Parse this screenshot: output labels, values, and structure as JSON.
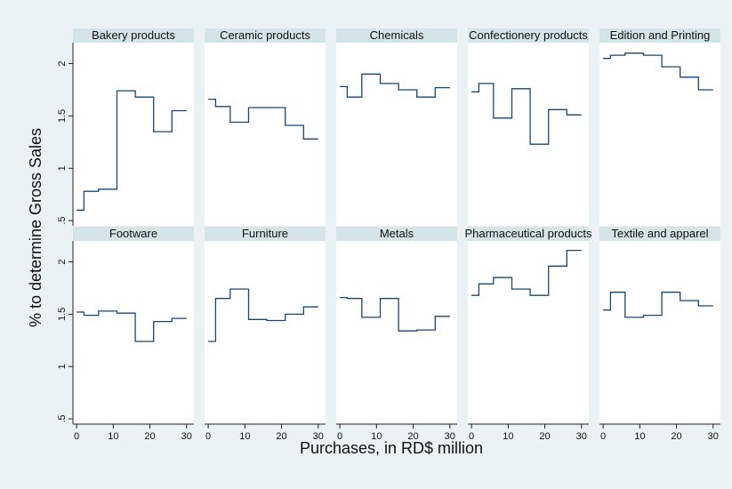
{
  "chart_data": {
    "type": "line",
    "xlabel": "Purchases, in RD$ million",
    "ylabel": "% to determine Gross Sales",
    "xlim": [
      -1,
      32
    ],
    "ylim": [
      0.45,
      2.2
    ],
    "xticks": [
      0,
      10,
      20,
      30
    ],
    "yticks": [
      0.5,
      1,
      1.5,
      2
    ],
    "xtick_labels": [
      "0",
      "10",
      "20",
      "30"
    ],
    "ytick_labels": [
      ".5",
      "1",
      "1.5",
      "2"
    ],
    "grid": false,
    "layout": {
      "rows": 2,
      "cols": 5
    },
    "line_color": "#1a476f",
    "panel_background": "#ffffff",
    "strip_color": "#d5e4e7",
    "page_background": "#eaf2f3",
    "panels": [
      {
        "name": "Bakery products",
        "x": [
          0,
          1,
          2,
          3,
          4,
          5,
          6,
          7,
          8,
          9,
          10,
          11,
          12,
          13,
          14,
          15,
          16,
          17,
          18,
          19,
          20,
          21,
          22,
          23,
          24,
          25,
          26,
          27,
          28,
          29,
          30
        ],
        "y": [
          0.6,
          0.6,
          0.78,
          0.78,
          0.78,
          0.78,
          0.8,
          0.8,
          0.8,
          0.8,
          0.8,
          1.74,
          1.74,
          1.74,
          1.74,
          1.74,
          1.68,
          1.68,
          1.68,
          1.68,
          1.68,
          1.35,
          1.35,
          1.35,
          1.35,
          1.35,
          1.55,
          1.55,
          1.55,
          1.55,
          1.55
        ]
      },
      {
        "name": "Ceramic products",
        "x": [
          0,
          1,
          2,
          3,
          4,
          5,
          6,
          7,
          8,
          9,
          10,
          11,
          12,
          13,
          14,
          15,
          16,
          17,
          18,
          19,
          20,
          21,
          22,
          23,
          24,
          25,
          26,
          27,
          28,
          29,
          30
        ],
        "y": [
          1.66,
          1.66,
          1.59,
          1.59,
          1.59,
          1.59,
          1.44,
          1.44,
          1.44,
          1.44,
          1.44,
          1.58,
          1.58,
          1.58,
          1.58,
          1.58,
          1.58,
          1.58,
          1.58,
          1.58,
          1.58,
          1.41,
          1.41,
          1.41,
          1.41,
          1.41,
          1.28,
          1.28,
          1.28,
          1.28,
          1.28
        ]
      },
      {
        "name": "Chemicals",
        "x": [
          0,
          1,
          2,
          3,
          4,
          5,
          6,
          7,
          8,
          9,
          10,
          11,
          12,
          13,
          14,
          15,
          16,
          17,
          18,
          19,
          20,
          21,
          22,
          23,
          24,
          25,
          26,
          27,
          28,
          29,
          30
        ],
        "y": [
          1.78,
          1.78,
          1.68,
          1.68,
          1.68,
          1.68,
          1.9,
          1.9,
          1.9,
          1.9,
          1.9,
          1.81,
          1.81,
          1.81,
          1.81,
          1.81,
          1.75,
          1.75,
          1.75,
          1.75,
          1.75,
          1.68,
          1.68,
          1.68,
          1.68,
          1.68,
          1.77,
          1.77,
          1.77,
          1.77,
          1.77
        ]
      },
      {
        "name": "Confectionery products",
        "x": [
          0,
          1,
          2,
          3,
          4,
          5,
          6,
          7,
          8,
          9,
          10,
          11,
          12,
          13,
          14,
          15,
          16,
          17,
          18,
          19,
          20,
          21,
          22,
          23,
          24,
          25,
          26,
          27,
          28,
          29,
          30
        ],
        "y": [
          1.73,
          1.73,
          1.81,
          1.81,
          1.81,
          1.81,
          1.48,
          1.48,
          1.48,
          1.48,
          1.48,
          1.76,
          1.76,
          1.76,
          1.76,
          1.76,
          1.23,
          1.23,
          1.23,
          1.23,
          1.23,
          1.56,
          1.56,
          1.56,
          1.56,
          1.56,
          1.51,
          1.51,
          1.51,
          1.51,
          1.51
        ]
      },
      {
        "name": "Edition and Printing",
        "x": [
          0,
          1,
          2,
          3,
          4,
          5,
          6,
          7,
          8,
          9,
          10,
          11,
          12,
          13,
          14,
          15,
          16,
          17,
          18,
          19,
          20,
          21,
          22,
          23,
          24,
          25,
          26,
          27,
          28,
          29,
          30
        ],
        "y": [
          2.05,
          2.05,
          2.08,
          2.08,
          2.08,
          2.08,
          2.1,
          2.1,
          2.1,
          2.1,
          2.1,
          2.08,
          2.08,
          2.08,
          2.08,
          2.08,
          1.97,
          1.97,
          1.97,
          1.97,
          1.97,
          1.87,
          1.87,
          1.87,
          1.87,
          1.87,
          1.75,
          1.75,
          1.75,
          1.75,
          1.75
        ]
      },
      {
        "name": "Footware",
        "x": [
          0,
          1,
          2,
          3,
          4,
          5,
          6,
          7,
          8,
          9,
          10,
          11,
          12,
          13,
          14,
          15,
          16,
          17,
          18,
          19,
          20,
          21,
          22,
          23,
          24,
          25,
          26,
          27,
          28,
          29,
          30
        ],
        "y": [
          1.52,
          1.52,
          1.49,
          1.49,
          1.49,
          1.49,
          1.53,
          1.53,
          1.53,
          1.53,
          1.53,
          1.51,
          1.51,
          1.51,
          1.51,
          1.51,
          1.24,
          1.24,
          1.24,
          1.24,
          1.24,
          1.43,
          1.43,
          1.43,
          1.43,
          1.43,
          1.46,
          1.46,
          1.46,
          1.46,
          1.46
        ]
      },
      {
        "name": "Furniture",
        "x": [
          0,
          1,
          2,
          3,
          4,
          5,
          6,
          7,
          8,
          9,
          10,
          11,
          12,
          13,
          14,
          15,
          16,
          17,
          18,
          19,
          20,
          21,
          22,
          23,
          24,
          25,
          26,
          27,
          28,
          29,
          30
        ],
        "y": [
          1.24,
          1.24,
          1.65,
          1.65,
          1.65,
          1.65,
          1.74,
          1.74,
          1.74,
          1.74,
          1.74,
          1.45,
          1.45,
          1.45,
          1.45,
          1.45,
          1.44,
          1.44,
          1.44,
          1.44,
          1.44,
          1.5,
          1.5,
          1.5,
          1.5,
          1.5,
          1.57,
          1.57,
          1.57,
          1.57,
          1.57
        ]
      },
      {
        "name": "Metals",
        "x": [
          0,
          1,
          2,
          3,
          4,
          5,
          6,
          7,
          8,
          9,
          10,
          11,
          12,
          13,
          14,
          15,
          16,
          17,
          18,
          19,
          20,
          21,
          22,
          23,
          24,
          25,
          26,
          27,
          28,
          29,
          30
        ],
        "y": [
          1.66,
          1.66,
          1.65,
          1.65,
          1.65,
          1.65,
          1.47,
          1.47,
          1.47,
          1.47,
          1.47,
          1.65,
          1.65,
          1.65,
          1.65,
          1.65,
          1.34,
          1.34,
          1.34,
          1.34,
          1.34,
          1.35,
          1.35,
          1.35,
          1.35,
          1.35,
          1.48,
          1.48,
          1.48,
          1.48,
          1.48
        ]
      },
      {
        "name": "Pharmaceutical products",
        "x": [
          0,
          1,
          2,
          3,
          4,
          5,
          6,
          7,
          8,
          9,
          10,
          11,
          12,
          13,
          14,
          15,
          16,
          17,
          18,
          19,
          20,
          21,
          22,
          23,
          24,
          25,
          26,
          27,
          28,
          29,
          30
        ],
        "y": [
          1.68,
          1.68,
          1.79,
          1.79,
          1.79,
          1.79,
          1.85,
          1.85,
          1.85,
          1.85,
          1.85,
          1.74,
          1.74,
          1.74,
          1.74,
          1.74,
          1.68,
          1.68,
          1.68,
          1.68,
          1.68,
          1.96,
          1.96,
          1.96,
          1.96,
          1.96,
          2.11,
          2.11,
          2.11,
          2.11,
          2.11
        ]
      },
      {
        "name": "Textile and apparel",
        "x": [
          0,
          1,
          2,
          3,
          4,
          5,
          6,
          7,
          8,
          9,
          10,
          11,
          12,
          13,
          14,
          15,
          16,
          17,
          18,
          19,
          20,
          21,
          22,
          23,
          24,
          25,
          26,
          27,
          28,
          29,
          30
        ],
        "y": [
          1.54,
          1.54,
          1.71,
          1.71,
          1.71,
          1.71,
          1.47,
          1.47,
          1.47,
          1.47,
          1.47,
          1.49,
          1.49,
          1.49,
          1.49,
          1.49,
          1.71,
          1.71,
          1.71,
          1.71,
          1.71,
          1.63,
          1.63,
          1.63,
          1.63,
          1.63,
          1.58,
          1.58,
          1.58,
          1.58,
          1.58
        ]
      }
    ]
  }
}
